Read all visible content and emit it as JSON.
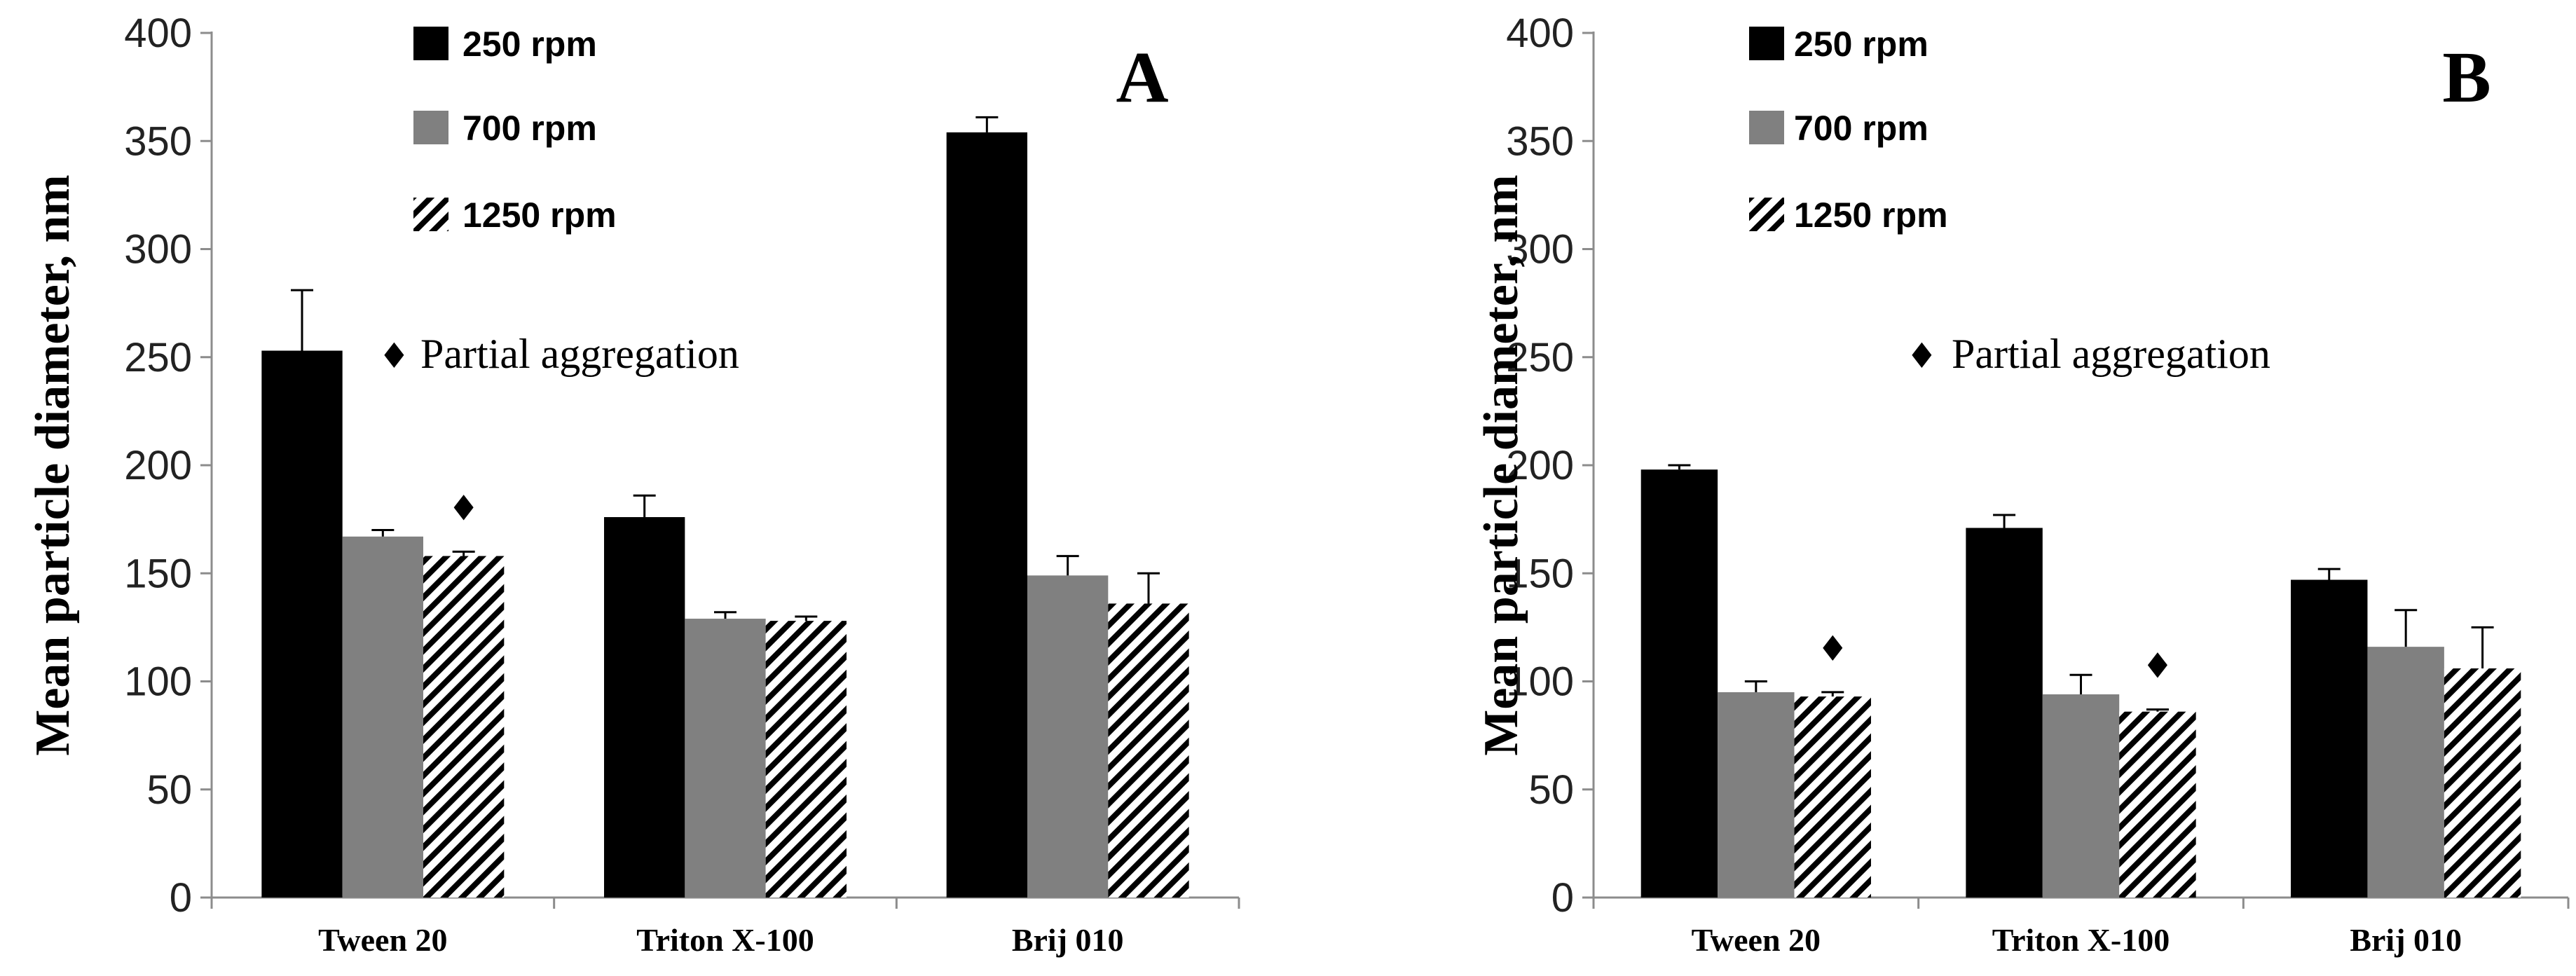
{
  "chart_data": [
    {
      "type": "bar",
      "panel_label": "A",
      "ylabel": "Mean particle diameter, nm",
      "ylim": [
        0,
        400
      ],
      "yticks": [
        "0",
        "50",
        "100",
        "150",
        "200",
        "250",
        "300",
        "350",
        "400"
      ],
      "categories": [
        "Tween 20",
        "Triton X-100",
        "Brij 010"
      ],
      "series": [
        {
          "name": "250 rpm",
          "values": [
            253,
            176,
            354
          ],
          "errors": [
            28,
            10,
            7
          ]
        },
        {
          "name": "700 rpm",
          "values": [
            167,
            129,
            149
          ],
          "errors": [
            3,
            3,
            9
          ]
        },
        {
          "name": "1250 rpm",
          "values": [
            158,
            128,
            136
          ],
          "errors": [
            2,
            2,
            14
          ]
        }
      ],
      "annotation": {
        "symbol": "♦",
        "text": "Partial aggregation"
      },
      "markers": [
        {
          "symbol": "♦",
          "category": "Tween 20",
          "series": "1250 rpm"
        }
      ]
    },
    {
      "type": "bar",
      "panel_label": "B",
      "ylabel": "Mean particle diameter, nm",
      "ylim": [
        0,
        400
      ],
      "yticks": [
        "0",
        "50",
        "100",
        "150",
        "200",
        "250",
        "300",
        "350",
        "400"
      ],
      "categories": [
        "Tween 20",
        "Triton X-100",
        "Brij 010"
      ],
      "series": [
        {
          "name": "250 rpm",
          "values": [
            198,
            171,
            147
          ],
          "errors": [
            2,
            6,
            5
          ]
        },
        {
          "name": "700 rpm",
          "values": [
            95,
            94,
            116
          ],
          "errors": [
            5,
            9,
            17
          ]
        },
        {
          "name": "1250 rpm",
          "values": [
            93,
            86,
            106
          ],
          "errors": [
            2,
            1,
            19
          ]
        }
      ],
      "annotation": {
        "symbol": "♦",
        "text": "Partial aggregation"
      },
      "markers": [
        {
          "symbol": "♦",
          "category": "Tween 20",
          "series": "1250 rpm"
        },
        {
          "symbol": "♦",
          "category": "Triton X-100",
          "series": "1250 rpm"
        }
      ]
    }
  ],
  "colors": {
    "series_250": "#000000",
    "series_700": "#808080",
    "hatch": "#000000",
    "axis": "#8c8c8c"
  }
}
